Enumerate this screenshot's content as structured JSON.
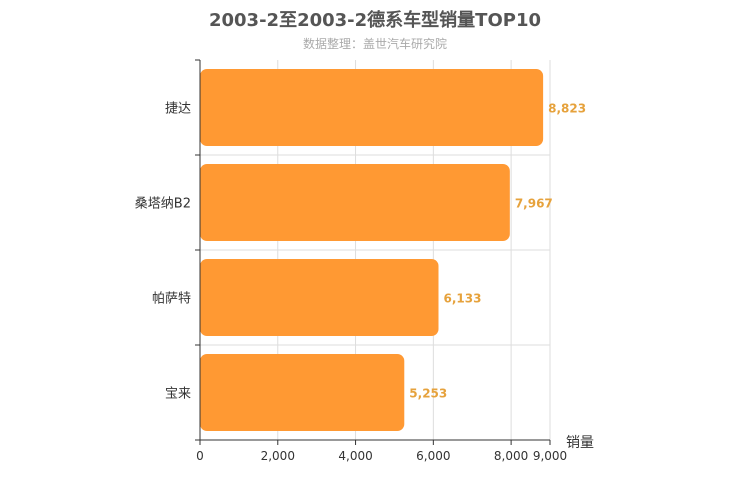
{
  "chart_data": {
    "type": "bar",
    "orientation": "horizontal",
    "title": "2003-2至2003-2德系车型销量TOP10",
    "subtitle": "数据整理：盖世汽车研究院",
    "categories": [
      "捷达",
      "桑塔纳B2",
      "帕萨特",
      "宝来"
    ],
    "values": [
      8823,
      7967,
      6133,
      5253
    ],
    "value_labels": [
      "8,823",
      "7,967",
      "6,133",
      "5,253"
    ],
    "xlabel": "销量",
    "ylabel": "",
    "xlim": [
      0,
      9000
    ],
    "x_ticks": [
      0,
      2000,
      4000,
      6000,
      8000,
      9000
    ],
    "x_tick_labels": [
      "0",
      "2,000",
      "4,000",
      "6,000",
      "8,000",
      "9,000"
    ],
    "grid": true,
    "bar_color": "#ff9933",
    "label_color": "#e6a23c"
  }
}
